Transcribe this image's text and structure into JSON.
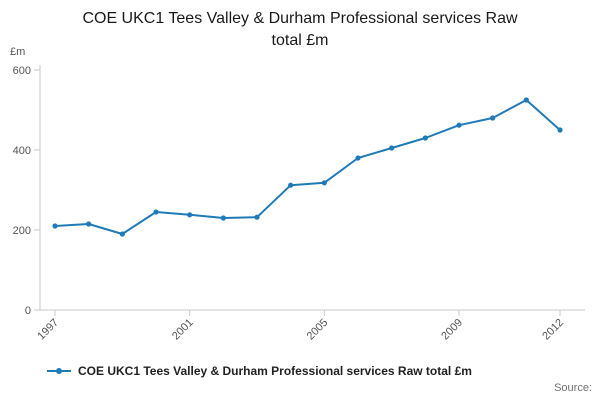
{
  "source": {
    "label": "Source:"
  },
  "legend": {
    "label": "COE UKC1 Tees Valley & Durham Professional services Raw total £m"
  },
  "colors": {
    "line": "#1f7bb8",
    "axis": "#c8c8c8",
    "tick_text": "#555555"
  },
  "chart_data": {
    "type": "line",
    "title": "COE UKC1 Tees Valley & Durham Professional services Raw total £m",
    "ylabel": "£m",
    "xlabel": "",
    "ylim": [
      0,
      600
    ],
    "yticks": [
      0,
      200,
      400,
      600
    ],
    "xticks": [
      1997,
      2001,
      2005,
      2009,
      2012
    ],
    "x": [
      1997,
      1998,
      1999,
      2000,
      2001,
      2002,
      2003,
      2004,
      2005,
      2006,
      2007,
      2008,
      2009,
      2010,
      2011,
      2012
    ],
    "series": [
      {
        "name": "COE UKC1 Tees Valley & Durham Professional services Raw total £m",
        "values": [
          210,
          215,
          190,
          245,
          238,
          230,
          232,
          312,
          318,
          380,
          405,
          430,
          462,
          480,
          525,
          450
        ]
      }
    ],
    "grid": false,
    "marker": "circle",
    "legend_position": "bottom-left"
  }
}
